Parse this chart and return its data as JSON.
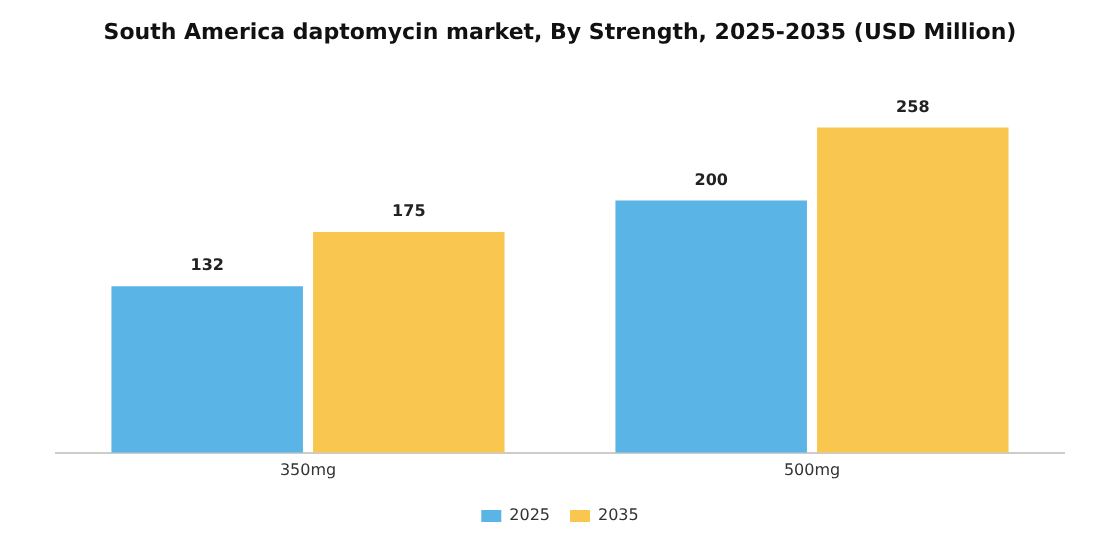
{
  "chart_data": {
    "type": "bar",
    "title": "South America daptomycin market, By Strength, 2025-2035 (USD Million)",
    "categories": [
      "350mg",
      "500mg"
    ],
    "series": [
      {
        "name": "2025",
        "color": "#5ab4e5",
        "values": [
          132,
          200
        ]
      },
      {
        "name": "2035",
        "color": "#f9c74f",
        "values": [
          175,
          258
        ]
      }
    ],
    "data_labels": true,
    "legend": "bottom",
    "grid": false
  }
}
